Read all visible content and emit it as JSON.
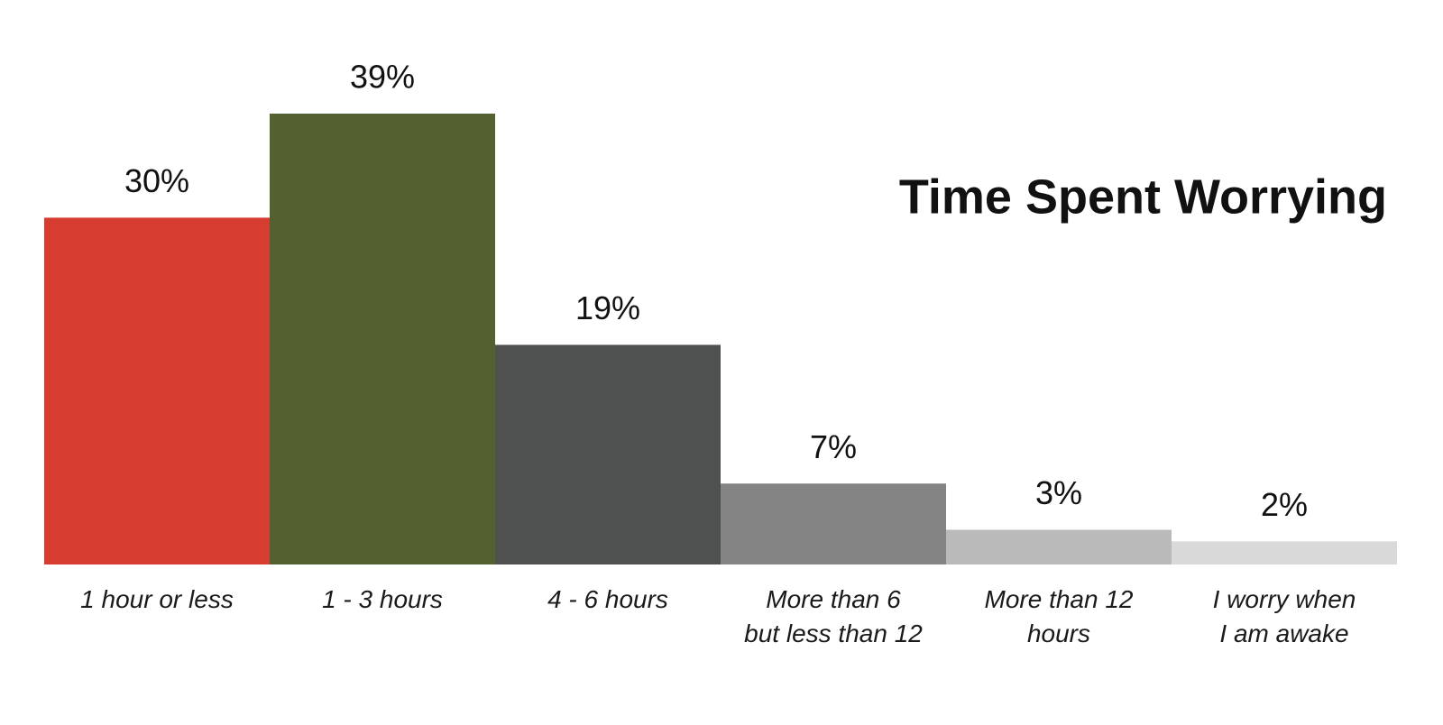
{
  "chart_data": {
    "type": "bar",
    "title": "Time Spent Worrying",
    "categories": [
      "1 hour or less",
      "1 - 3 hours",
      "4 - 6 hours",
      "More than 6\nbut less than 12",
      "More than 12\nhours",
      "I worry when\nI am awake"
    ],
    "values": [
      30,
      39,
      19,
      7,
      3,
      2
    ],
    "value_labels": [
      "30%",
      "39%",
      "19%",
      "7%",
      "3%",
      "2%"
    ],
    "colors": [
      "#d63c30",
      "#536130",
      "#4f5050",
      "#838483",
      "#bababa",
      "#d9d9d9"
    ]
  }
}
